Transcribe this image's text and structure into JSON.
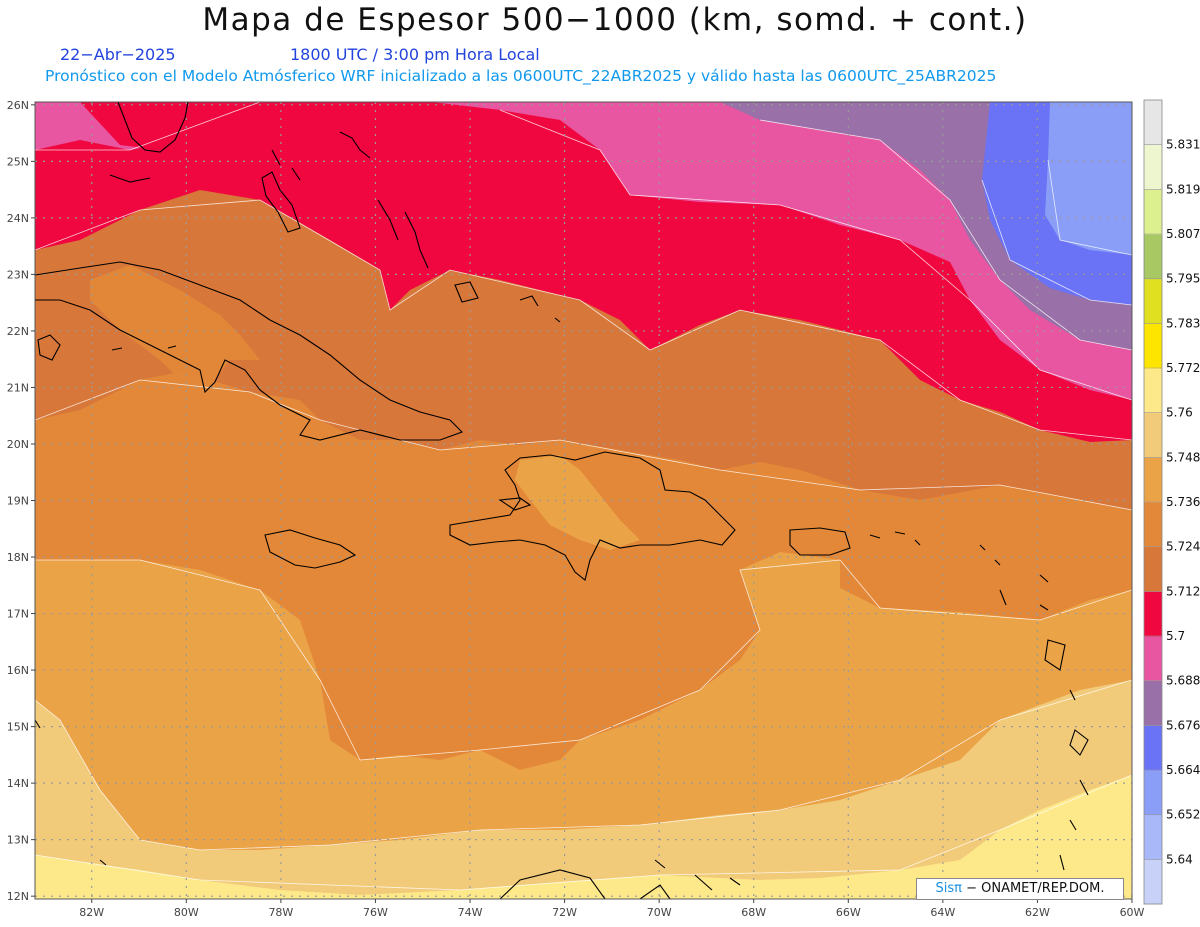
{
  "header": {
    "title": "Mapa de Espesor 500−1000 (km, somd. + cont.)",
    "date": "22−Abr−2025",
    "time": "1800 UTC / 3:00 pm Hora Local",
    "description": "Pronóstico con el Modelo Atmósferico WRF inicializado a las 0600UTC_22ABR2025 y válido hasta las  0600UTC_25ABR2025"
  },
  "axes": {
    "lat_labels": [
      "26N",
      "25N",
      "24N",
      "23N",
      "22N",
      "21N",
      "20N",
      "19N",
      "18N",
      "17N",
      "16N",
      "15N",
      "14N",
      "13N",
      "12N"
    ],
    "lon_labels": [
      "82W",
      "80W",
      "78W",
      "76W",
      "74W",
      "72W",
      "70W",
      "68W",
      "66W",
      "64W",
      "62W",
      "60W"
    ]
  },
  "colorbar": {
    "levels": [
      "5.64",
      "5.652",
      "5.664",
      "5.676",
      "5.688",
      "5.7",
      "5.712",
      "5.724",
      "5.736",
      "5.748",
      "5.76",
      "5.772",
      "5.783",
      "5.795",
      "5.807",
      "5.819",
      "5.831"
    ],
    "colors": [
      "#c8d2f8",
      "#a8b8f8",
      "#8a9ef8",
      "#6a72f6",
      "#9a70a8",
      "#e855a0",
      "#f0073f",
      "#d8773a",
      "#e38838",
      "#eba348",
      "#f2cb7a",
      "#fde98a",
      "#fde500",
      "#e0e020",
      "#a8c864",
      "#ddf090",
      "#eef6d0",
      "#e6e6e6"
    ]
  },
  "map_colors": {
    "magenta": "#e855a0",
    "red": "#f0073f",
    "dark_orange": "#d8773a",
    "orange": "#e38838",
    "light_orange": "#eba348",
    "tan": "#f2cb7a",
    "yellow": "#fde98a",
    "purple": "#9a70a8",
    "blue": "#6a72f6",
    "light_blue": "#8a9ef8"
  },
  "credit": {
    "brand": "Sisπ",
    "org": "− ONAMET/REP.DOM."
  }
}
